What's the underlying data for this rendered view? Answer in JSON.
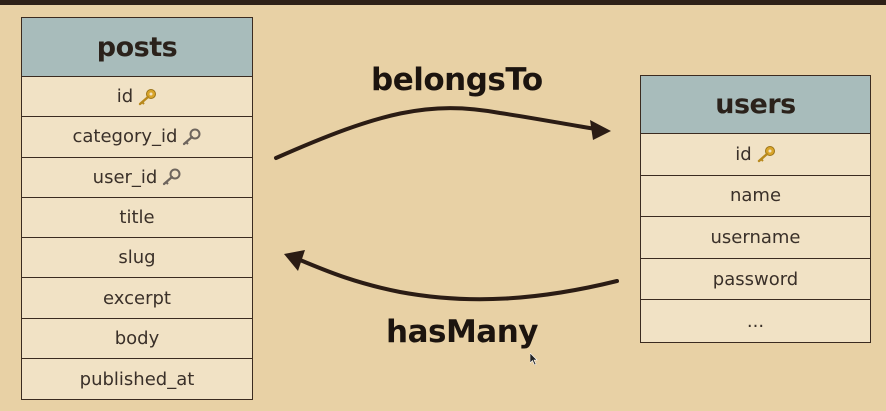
{
  "tables": {
    "posts": {
      "title": "posts",
      "fields": [
        {
          "label": "id",
          "key": "primary"
        },
        {
          "label": "category_id",
          "key": "foreign"
        },
        {
          "label": "user_id",
          "key": "foreign"
        },
        {
          "label": "title",
          "key": null
        },
        {
          "label": "slug",
          "key": null
        },
        {
          "label": "excerpt",
          "key": null
        },
        {
          "label": "body",
          "key": null
        },
        {
          "label": "published_at",
          "key": null
        }
      ]
    },
    "users": {
      "title": "users",
      "fields": [
        {
          "label": "id",
          "key": "primary"
        },
        {
          "label": "name",
          "key": null
        },
        {
          "label": "username",
          "key": null
        },
        {
          "label": "password",
          "key": null
        },
        {
          "label": "...",
          "key": null
        }
      ]
    }
  },
  "relations": {
    "belongs_to": {
      "label": "belongsTo",
      "from": "posts",
      "to": "users"
    },
    "has_many": {
      "label": "hasMany",
      "from": "users",
      "to": "posts"
    }
  },
  "colors": {
    "background": "#e8d1a5",
    "header": "#a8bcbb",
    "row": "#f1e2c5",
    "border": "#3b2b20",
    "primary_key": "#d9a52a",
    "foreign_key": "#8a7f74",
    "arrow": "#2b1c14"
  },
  "icons": {
    "primary": "gold-key-icon",
    "foreign": "gray-key-icon"
  }
}
